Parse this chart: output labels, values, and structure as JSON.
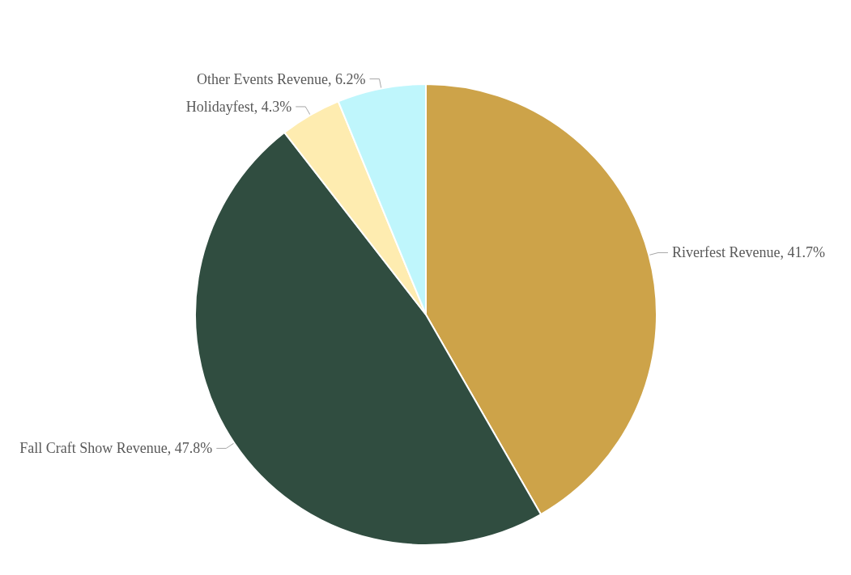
{
  "chart_data": {
    "type": "pie",
    "categories": [
      "Riverfest Revenue",
      "Fall Craft Show Revenue",
      "Holidayfest",
      "Other Events Revenue"
    ],
    "values": [
      41.7,
      47.8,
      4.3,
      6.2
    ],
    "value_labels": [
      "41.7%",
      "47.8%",
      "4.3%",
      "6.2%"
    ],
    "colors": [
      "#cda349",
      "#304d40",
      "#feecb0",
      "#bff6fc"
    ],
    "legend": false
  }
}
